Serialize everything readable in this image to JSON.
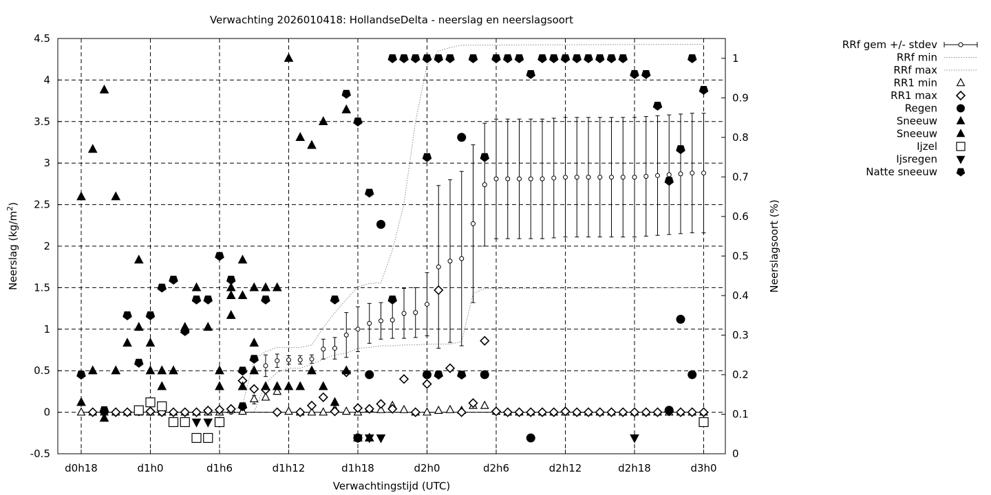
{
  "chart_data": {
    "type": "scatter",
    "title": "Verwachting 2026010418: HollandseDelta - neerslag en neerslagsoort",
    "xlabel": "Verwachtingstijd (UTC)",
    "ylabel": "Neerslag (kg/m²)",
    "ylabel_base": "Neerslag (kg/m",
    "ylabel_sup": "2",
    "ylabel_end": ")",
    "y2label": "Neerslagsoort (%)",
    "xlim": [
      -2,
      56
    ],
    "ylim": [
      -0.5,
      4.5
    ],
    "y2lim": [
      0,
      1.05
    ],
    "grid": true,
    "legend_position": "right",
    "x_ticks": [
      {
        "x": 0,
        "label": "d0h18"
      },
      {
        "x": 6,
        "label": "d1h0"
      },
      {
        "x": 12,
        "label": "d1h6"
      },
      {
        "x": 18,
        "label": "d1h12"
      },
      {
        "x": 24,
        "label": "d1h18"
      },
      {
        "x": 30,
        "label": "d2h0"
      },
      {
        "x": 36,
        "label": "d2h6"
      },
      {
        "x": 42,
        "label": "d2h12"
      },
      {
        "x": 48,
        "label": "d2h18"
      },
      {
        "x": 54,
        "label": "d3h0"
      }
    ],
    "y_ticks": [
      "-0.5",
      "0",
      "0.5",
      "1",
      "1.5",
      "2",
      "2.5",
      "3",
      "3.5",
      "4",
      "4.5"
    ],
    "y2_ticks": [
      "0",
      "0.1",
      "0.2",
      "0.3",
      "0.4",
      "0.5",
      "0.6",
      "0.7",
      "0.8",
      "0.9",
      "1"
    ],
    "legend": [
      {
        "label": "RRf gem +/- stdev",
        "marker": "errorbar"
      },
      {
        "label": "RRf min",
        "marker": "dotted-line"
      },
      {
        "label": "RRf max",
        "marker": "dotted-line"
      },
      {
        "label": "RR1 min",
        "marker": "open-triangle"
      },
      {
        "label": "RR1 max",
        "marker": "open-diamond"
      },
      {
        "label": "Regen",
        "marker": "filled-circle"
      },
      {
        "label": "Sneeuw",
        "marker": "filled-triangle"
      },
      {
        "label": "Sneeuw",
        "marker": "filled-triangle"
      },
      {
        "label": "Ijzel",
        "marker": "open-square"
      },
      {
        "label": "Ijsregen",
        "marker": "filled-triangle-down"
      },
      {
        "label": "Natte sneeuw",
        "marker": "filled-pentagon"
      }
    ],
    "series": [
      {
        "name": "RRf gem +/- stdev",
        "x": [
          0,
          1,
          2,
          3,
          4,
          5,
          6,
          7,
          8,
          9,
          10,
          11,
          12,
          13,
          14,
          15,
          16,
          17,
          18,
          19,
          20,
          21,
          22,
          23,
          24,
          25,
          26,
          27,
          28,
          29,
          30,
          31,
          32,
          33,
          34,
          35,
          36,
          37,
          38,
          39,
          40,
          41,
          42,
          43,
          44,
          45,
          46,
          47,
          48,
          49,
          50,
          51,
          52,
          53,
          54
        ],
        "mean": [
          0,
          0,
          0,
          0,
          0,
          0,
          0,
          0,
          0,
          0,
          0,
          0,
          0,
          0,
          0.03,
          0.15,
          0.56,
          0.62,
          0.63,
          0.63,
          0.64,
          0.76,
          0.77,
          0.93,
          1.0,
          1.07,
          1.1,
          1.11,
          1.19,
          1.2,
          1.3,
          1.75,
          1.82,
          1.85,
          2.27,
          2.74,
          2.81,
          2.81,
          2.81,
          2.81,
          2.81,
          2.82,
          2.83,
          2.83,
          2.83,
          2.83,
          2.83,
          2.83,
          2.83,
          2.84,
          2.85,
          2.86,
          2.87,
          2.88,
          2.88
        ],
        "stdev": [
          0,
          0,
          0,
          0,
          0,
          0,
          0,
          0,
          0,
          0,
          0,
          0,
          0,
          0,
          0.01,
          0.05,
          0.13,
          0.08,
          0.05,
          0.05,
          0.05,
          0.12,
          0.13,
          0.27,
          0.27,
          0.24,
          0.22,
          0.22,
          0.3,
          0.3,
          0.38,
          0.98,
          0.98,
          1.05,
          0.95,
          0.74,
          0.72,
          0.72,
          0.72,
          0.72,
          0.72,
          0.72,
          0.72,
          0.72,
          0.72,
          0.72,
          0.72,
          0.72,
          0.72,
          0.72,
          0.72,
          0.72,
          0.72,
          0.72,
          0.72
        ]
      },
      {
        "name": "RRf min",
        "x": [
          0,
          13,
          14,
          15,
          16,
          17,
          18,
          19,
          20,
          21,
          22,
          23,
          24,
          25,
          26,
          27,
          28,
          29,
          30,
          31,
          32,
          33,
          34,
          35,
          36,
          54
        ],
        "y": [
          0,
          0,
          0,
          0,
          0.35,
          0.48,
          0.53,
          0.53,
          0.58,
          0.64,
          0.69,
          0.71,
          0.77,
          0.78,
          0.8,
          0.8,
          0.81,
          0.81,
          0.82,
          0.82,
          0.82,
          0.85,
          1.43,
          1.49,
          1.49,
          1.5
        ]
      },
      {
        "name": "RRf max",
        "x": [
          0,
          13,
          14,
          15,
          16,
          17,
          18,
          19,
          20,
          21,
          22,
          23,
          24,
          25,
          26,
          27,
          28,
          29,
          30,
          31,
          32,
          33,
          54
        ],
        "y": [
          0,
          0,
          0.09,
          0.63,
          0.73,
          0.78,
          0.78,
          0.78,
          0.81,
          1.02,
          1.2,
          1.36,
          1.51,
          1.55,
          1.56,
          1.95,
          2.51,
          3.5,
          4.18,
          4.35,
          4.39,
          4.42,
          4.43
        ]
      },
      {
        "name": "RR1 min",
        "x": [
          0,
          1,
          2,
          3,
          4,
          5,
          6,
          7,
          8,
          9,
          10,
          11,
          12,
          13,
          14,
          15,
          16,
          17,
          18,
          19,
          20,
          21,
          22,
          23,
          24,
          25,
          26,
          27,
          28,
          29,
          30,
          31,
          32,
          33,
          34,
          35,
          36,
          37,
          38,
          39,
          40,
          41,
          42,
          43,
          44,
          45,
          46,
          47,
          48,
          49,
          50,
          51,
          52,
          53,
          54
        ],
        "y": [
          0,
          0,
          0,
          0,
          0,
          0,
          0,
          0,
          0,
          0,
          0,
          0,
          0,
          0.03,
          0.01,
          0.16,
          0.18,
          0.25,
          0.01,
          0,
          0,
          0,
          0.04,
          0.01,
          0,
          0.04,
          0.03,
          0.08,
          0.03,
          0,
          0,
          0.02,
          0.03,
          0.02,
          0.08,
          0.08,
          0.01,
          0,
          0,
          0,
          0,
          0,
          0,
          0,
          0,
          0,
          0,
          0,
          0,
          0,
          0,
          0,
          0,
          0,
          0
        ]
      },
      {
        "name": "RR1 max",
        "x": [
          1,
          2,
          3,
          4,
          5,
          6,
          7,
          8,
          9,
          10,
          11,
          12,
          13,
          14,
          15,
          16,
          17,
          19,
          20,
          21,
          22,
          23,
          24,
          25,
          26,
          27,
          28,
          29,
          30,
          31,
          32,
          33,
          34,
          35,
          36,
          37,
          38,
          39,
          40,
          41,
          42,
          43,
          44,
          45,
          46,
          47,
          48,
          49,
          50,
          51,
          52,
          53,
          54
        ],
        "y": [
          0,
          0,
          0,
          0,
          0.01,
          0.01,
          0,
          0,
          0,
          0,
          0.02,
          0.03,
          0.04,
          0.38,
          0.28,
          0.27,
          0,
          0,
          0.08,
          0.18,
          0.01,
          0.48,
          0.05,
          0.04,
          0.1,
          0.04,
          0.4,
          0,
          0.34,
          1.47,
          0.53,
          0,
          0.11,
          0.86,
          0.01,
          0,
          0,
          0,
          0,
          0,
          0.01,
          0,
          0,
          0,
          0,
          0,
          0,
          0,
          0,
          0.01,
          0,
          0,
          0
        ]
      }
    ],
    "type_series": [
      {
        "name": "Regen",
        "marker": "filled-circle",
        "x": [
          24,
          25,
          26,
          30,
          33,
          35,
          39,
          51,
          52,
          53
        ],
        "y": [
          0.04,
          0.2,
          0.58,
          0.2,
          0.8,
          0.2,
          0.04,
          0.11,
          0.34,
          0.2
        ]
      },
      {
        "name": "Sneeuw",
        "marker": "filled-triangle",
        "x": [
          0,
          0,
          1,
          1,
          2,
          2,
          3,
          3,
          4,
          5,
          5,
          6,
          6,
          6,
          7,
          7,
          8,
          9,
          10,
          11,
          12,
          12,
          13,
          13,
          13,
          14,
          14,
          14,
          15,
          15,
          15,
          16,
          16,
          17,
          17,
          18,
          18,
          19,
          19,
          20,
          20,
          21,
          21,
          22,
          23,
          23,
          24,
          25
        ],
        "y": [
          0.13,
          0.65,
          0.21,
          0.77,
          0.09,
          0.92,
          0.21,
          0.65,
          0.28,
          0.32,
          0.49,
          0.13,
          0.21,
          0.28,
          0.21,
          0.17,
          0.21,
          0.32,
          0.42,
          0.32,
          0.21,
          0.17,
          0.42,
          0.35,
          0.4,
          0.4,
          0.49,
          0.17,
          0.42,
          0.28,
          0.21,
          0.42,
          0.17,
          0.42,
          0.17,
          0.17,
          1.0,
          0.8,
          0.17,
          0.21,
          0.78,
          0.17,
          0.84,
          0.13,
          0.21,
          0.87,
          0.04,
          0.04
        ]
      },
      {
        "name": "Ijzel",
        "marker": "open-square",
        "x": [
          5,
          6,
          7,
          8,
          9,
          10,
          11,
          12,
          54
        ],
        "y": [
          0.11,
          0.13,
          0.12,
          0.08,
          0.08,
          0.04,
          0.04,
          0.08,
          0.08
        ]
      },
      {
        "name": "Ijsregen",
        "marker": "filled-triangle-down",
        "x": [
          10,
          11,
          24,
          25,
          26,
          48
        ],
        "y": [
          0.08,
          0.08,
          0.04,
          0.04,
          0.04,
          0.04
        ]
      },
      {
        "name": "Natte sneeuw",
        "marker": "filled-pentagon",
        "x": [
          0,
          2,
          4,
          5,
          6,
          7,
          8,
          9,
          10,
          11,
          12,
          13,
          14,
          14,
          15,
          16,
          22,
          23,
          24,
          25,
          27,
          27,
          28,
          29,
          30,
          30,
          31,
          31,
          32,
          33,
          34,
          35,
          36,
          37,
          38,
          39,
          40,
          41,
          42,
          43,
          44,
          45,
          46,
          47,
          48,
          49,
          50,
          51,
          52,
          53,
          54
        ],
        "y": [
          0.2,
          0.11,
          0.35,
          0.23,
          0.35,
          0.42,
          0.44,
          0.31,
          0.39,
          0.39,
          0.5,
          0.44,
          0.21,
          0.12,
          0.24,
          0.39,
          0.39,
          0.91,
          0.84,
          0.66,
          0.39,
          1.0,
          1.0,
          1.0,
          0.75,
          1.0,
          0.2,
          1.0,
          1.0,
          0.2,
          1.0,
          0.75,
          1.0,
          1.0,
          1.0,
          0.96,
          1.0,
          1.0,
          1.0,
          1.0,
          1.0,
          1.0,
          1.0,
          1.0,
          0.96,
          0.96,
          0.88,
          0.69,
          0.77,
          1.0,
          0.92
        ]
      }
    ]
  }
}
